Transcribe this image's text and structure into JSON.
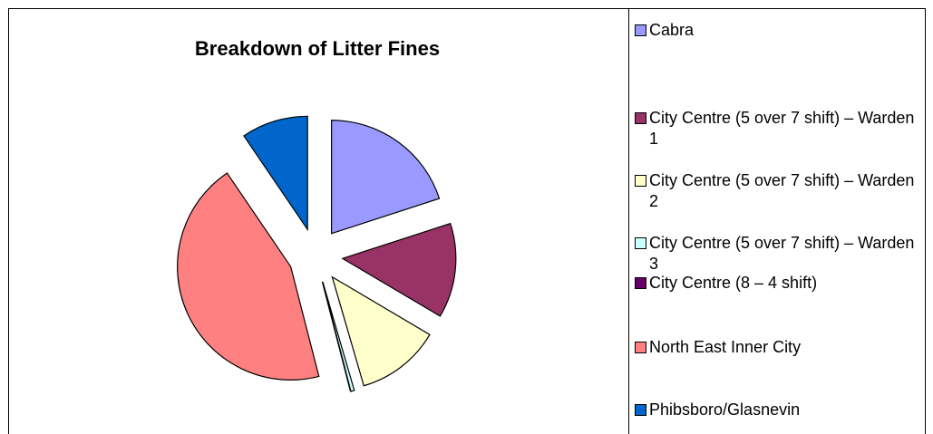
{
  "chart_data": {
    "type": "pie",
    "title": "Breakdown of Litter Fines",
    "categories": [
      "Cabra",
      "City Centre (5 over 7 shift) – Warden 1",
      "City Centre (5 over 7 shift) – Warden 2",
      "City Centre (5 over 7 shift) – Warden 3",
      "City Centre (8 – 4 shift)",
      "North East Inner City",
      "Phibsboro/Glasnevin"
    ],
    "values": [
      20,
      13.5,
      12,
      0.5,
      0,
      44.5,
      9.5
    ],
    "colors": [
      "#9999ff",
      "#993366",
      "#ffffcc",
      "#ccffff",
      "#660066",
      "#ff8080",
      "#0066cc"
    ],
    "exploded": true,
    "legend": "right"
  }
}
